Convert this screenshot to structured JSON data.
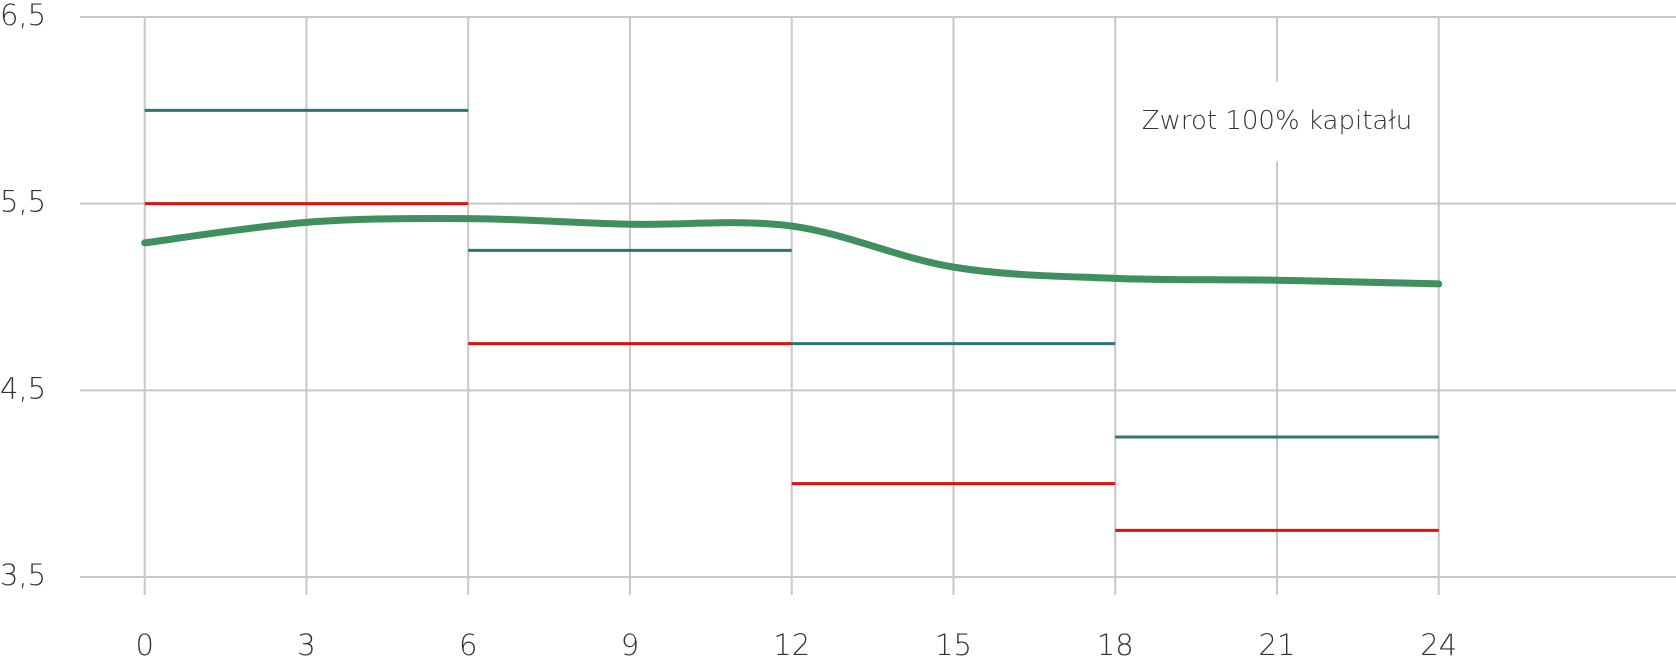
{
  "chart_data": {
    "type": "line",
    "xlim": [
      -1.2,
      28.4
    ],
    "xticks": [
      0,
      3,
      6,
      9,
      12,
      15,
      18,
      21,
      24
    ],
    "ylim": [
      3.5,
      6.5
    ],
    "yticks": [
      {
        "value": 3.5,
        "label": "3,5"
      },
      {
        "value": 4.5,
        "label": "4,5"
      },
      {
        "value": 5.5,
        "label": "5,5"
      },
      {
        "value": 6.5,
        "label": "6,5"
      }
    ],
    "grid": true,
    "annotation": {
      "text": "Zwrot 100% kapitału",
      "x": 21,
      "y": 5.94
    },
    "steps": [
      {
        "color": "#2e7470",
        "x_start": [
          0,
          6,
          12,
          18
        ],
        "x_end": [
          6,
          12,
          18,
          24
        ],
        "values": [
          6.0,
          5.25,
          4.75,
          4.25
        ]
      },
      {
        "color": "#e01010",
        "x_start": [
          0,
          6,
          12,
          18
        ],
        "x_end": [
          6,
          12,
          18,
          24
        ],
        "values": [
          5.5,
          4.75,
          4.0,
          3.75
        ]
      }
    ],
    "series": [
      {
        "color": "#3f8f5f",
        "x": [
          0,
          3,
          6,
          9,
          12,
          15,
          18,
          21,
          24
        ],
        "values": [
          5.29,
          5.4,
          5.42,
          5.39,
          5.38,
          5.16,
          5.1,
          5.09,
          5.07
        ]
      }
    ]
  }
}
